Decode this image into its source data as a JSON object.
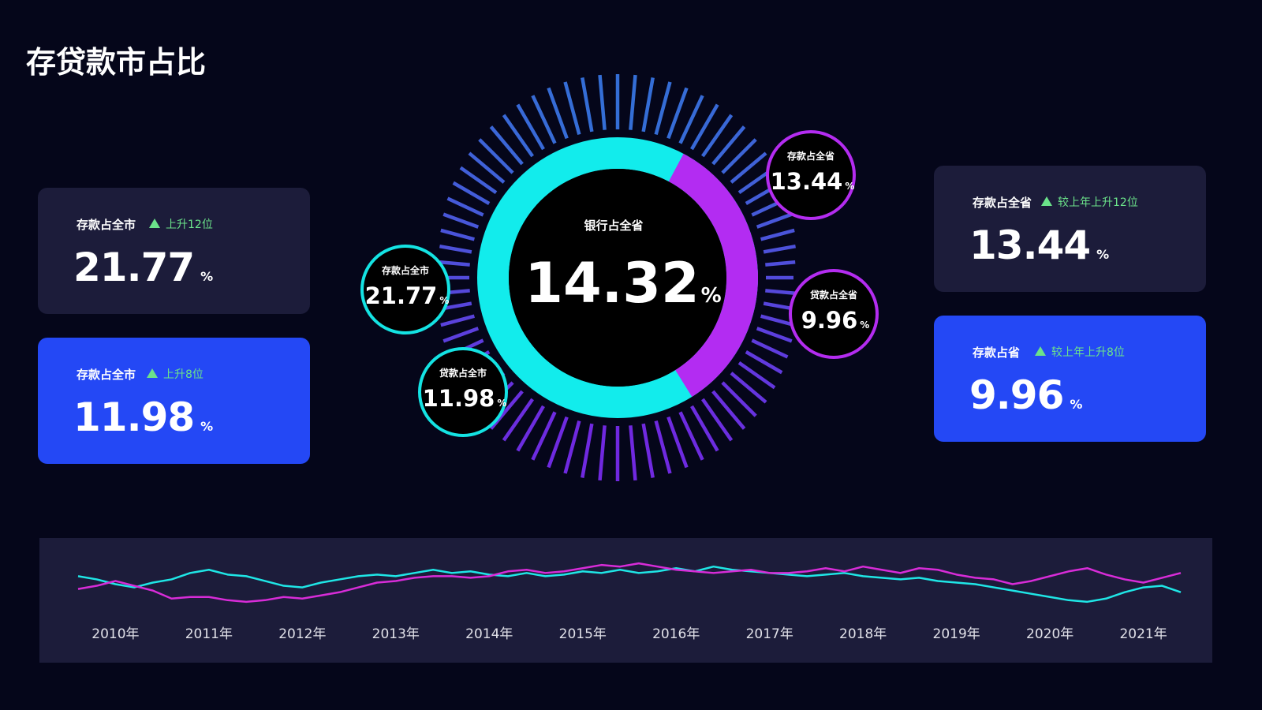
{
  "header": {
    "title": "存贷款市占比"
  },
  "cards": [
    {
      "label": "存款占全市",
      "change": "上升12位",
      "value": 21.77,
      "unit": "%"
    },
    {
      "label": "存款占全市",
      "change": "上升8位",
      "value": 11.98,
      "unit": "%"
    },
    {
      "label": "存款占全省",
      "change": "较上年上升12位",
      "value": 13.44,
      "unit": "%"
    },
    {
      "label": "存款占省",
      "change": "较上年上升8位",
      "value": 9.96,
      "unit": "%"
    }
  ],
  "gauge": {
    "label": "银行占全省",
    "value": 14.32,
    "unit": "%"
  },
  "bubbles": [
    {
      "label": "存款占全市",
      "value": 21.77,
      "unit": "%"
    },
    {
      "label": "贷款占全市",
      "value": 11.98,
      "unit": "%"
    },
    {
      "label": "存款占全省",
      "value": 13.44,
      "unit": "%"
    },
    {
      "label": "贷款占全省",
      "value": 9.96,
      "unit": "%"
    }
  ],
  "chart_data": {
    "type": "line",
    "categories": [
      null,
      null,
      "2010年",
      null,
      null,
      null,
      null,
      "2011年",
      null,
      null,
      null,
      null,
      "2012年",
      null,
      null,
      null,
      null,
      "2013年",
      null,
      null,
      null,
      null,
      "2014年",
      null,
      null,
      null,
      null,
      "2015年",
      null,
      null,
      null,
      null,
      "2016年",
      null,
      null,
      null,
      null,
      "2017年",
      null,
      null,
      null,
      null,
      "2018年",
      null,
      null,
      null,
      null,
      "2019年",
      null,
      null,
      null,
      null,
      "2020年",
      null,
      null,
      null,
      null,
      "2021年",
      null,
      null
    ],
    "series": [
      {
        "color": "#1fe6e6",
        "values": [
          44,
          40,
          34,
          30,
          36,
          40,
          48,
          52,
          46,
          44,
          38,
          32,
          30,
          36,
          40,
          44,
          46,
          44,
          48,
          52,
          48,
          50,
          46,
          44,
          48,
          44,
          46,
          50,
          48,
          52,
          48,
          50,
          54,
          50,
          56,
          52,
          50,
          48,
          46,
          44,
          46,
          48,
          44,
          42,
          40,
          42,
          38,
          36,
          34,
          30,
          26,
          22,
          18,
          14,
          12,
          16,
          24,
          30,
          32,
          24
        ]
      },
      {
        "color": "#d82cd8",
        "values": [
          28,
          32,
          38,
          32,
          26,
          16,
          18,
          18,
          14,
          12,
          14,
          18,
          16,
          20,
          24,
          30,
          36,
          38,
          42,
          44,
          44,
          42,
          44,
          50,
          52,
          48,
          50,
          54,
          58,
          56,
          60,
          56,
          52,
          50,
          48,
          50,
          52,
          48,
          48,
          50,
          54,
          50,
          56,
          52,
          48,
          54,
          52,
          46,
          42,
          40,
          34,
          38,
          44,
          50,
          54,
          46,
          40,
          36,
          42,
          48
        ]
      }
    ],
    "ylim": [
      0,
      70
    ]
  }
}
